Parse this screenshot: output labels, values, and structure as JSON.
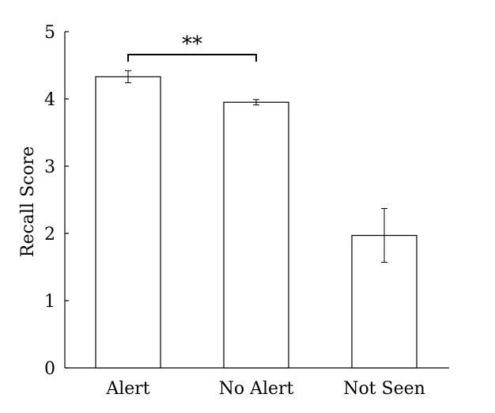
{
  "chart_data": {
    "type": "bar",
    "categories": [
      "Alert",
      "No Alert",
      "Not Seen"
    ],
    "values": [
      4.33,
      3.95,
      1.97
    ],
    "errors": [
      0.09,
      0.04,
      0.4
    ],
    "xlabel": "",
    "ylabel": "Recall Score",
    "ylim": [
      0,
      5
    ],
    "yticks": [
      "0",
      "1",
      "2",
      "3",
      "4",
      "5"
    ],
    "grid": false,
    "legend": "none",
    "bar_fill": "#ffffff",
    "bar_stroke": "#000000",
    "significance": {
      "between": [
        "Alert",
        "No Alert"
      ],
      "label": "**"
    }
  }
}
